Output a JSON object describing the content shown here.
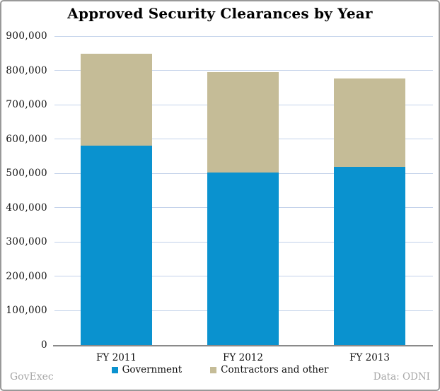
{
  "title": "Approved Security Clearances by Year",
  "footer": {
    "left": "GovExec",
    "right": "Data: ODNI"
  },
  "colors": {
    "government": "#0a92cf",
    "contractors": "#c5bc97",
    "gridline": "#c3d2ea",
    "axis": "#8a8a8a",
    "frame_border": "#999999",
    "footer_text": "#a8a8a8",
    "label_text": "#111111",
    "background": "#ffffff"
  },
  "chart_data": {
    "type": "bar",
    "stacked": true,
    "title": "Approved Security Clearances by Year",
    "categories": [
      "FY 2011",
      "FY 2012",
      "FY 2013"
    ],
    "series": [
      {
        "name": "Government",
        "color": "#0a92cf",
        "values": [
          580000,
          503000,
          520000
        ]
      },
      {
        "name": "Contractors and other",
        "color": "#c5bc97",
        "values": [
          269000,
          293000,
          257000
        ]
      }
    ],
    "stacked_totals": [
      849000,
      796000,
      777000
    ],
    "xlabel": "",
    "ylabel": "",
    "ylim": [
      0,
      900000
    ],
    "yticks": [
      {
        "value": 900000,
        "label": "900,000"
      },
      {
        "value": 800000,
        "label": "800,000"
      },
      {
        "value": 700000,
        "label": "700,000"
      },
      {
        "value": 600000,
        "label": "600,000"
      },
      {
        "value": 500000,
        "label": "500,000"
      },
      {
        "value": 400000,
        "label": "400,000"
      },
      {
        "value": 300000,
        "label": "300,000"
      },
      {
        "value": 200000,
        "label": "200,000"
      },
      {
        "value": 100000,
        "label": "100,000"
      },
      {
        "value": 0,
        "label": "0"
      }
    ],
    "grid": true,
    "legend_position": "bottom"
  }
}
